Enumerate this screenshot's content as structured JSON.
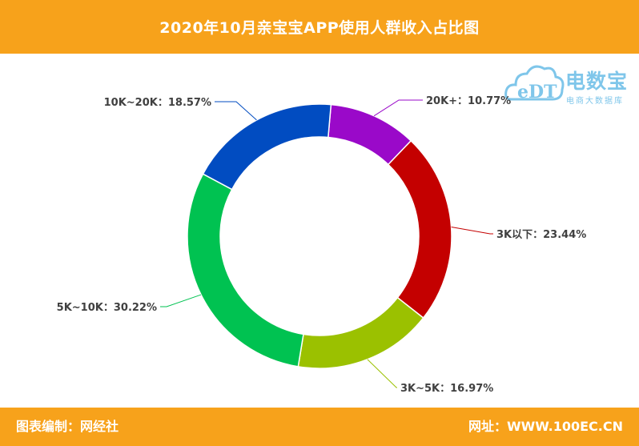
{
  "header": {
    "title": "2020年10月亲宝宝APP使用人群收入占比图"
  },
  "footer": {
    "source": "图表编制：网经社",
    "website": "网址：WWW.100EC.CN"
  },
  "logo": {
    "mark": "eDT",
    "name": "电数宝",
    "tagline": "电商大数据库"
  },
  "colors": {
    "banner": "#f7a21b",
    "logo": "#7fc6ea"
  },
  "chart_data": {
    "type": "pie",
    "variant": "donut",
    "title": "2020年10月亲宝宝APP使用人群收入占比图",
    "slices": [
      {
        "label": "20K+",
        "value": 10.77,
        "display": "20K+：10.77%",
        "color": "#9a09c9"
      },
      {
        "label": "3K以下",
        "value": 23.44,
        "display": "3K以下：23.44%",
        "color": "#c40000"
      },
      {
        "label": "3K~5K",
        "value": 16.97,
        "display": "3K~5K：16.97%",
        "color": "#9bc100"
      },
      {
        "label": "5K~10K",
        "value": 30.22,
        "display": "5K~10K：30.22%",
        "color": "#00c251"
      },
      {
        "label": "10K~20K",
        "value": 18.57,
        "display": "10K~20K：18.57%",
        "color": "#014cc1"
      }
    ],
    "start_angle_deg": 5,
    "legend": "none"
  }
}
